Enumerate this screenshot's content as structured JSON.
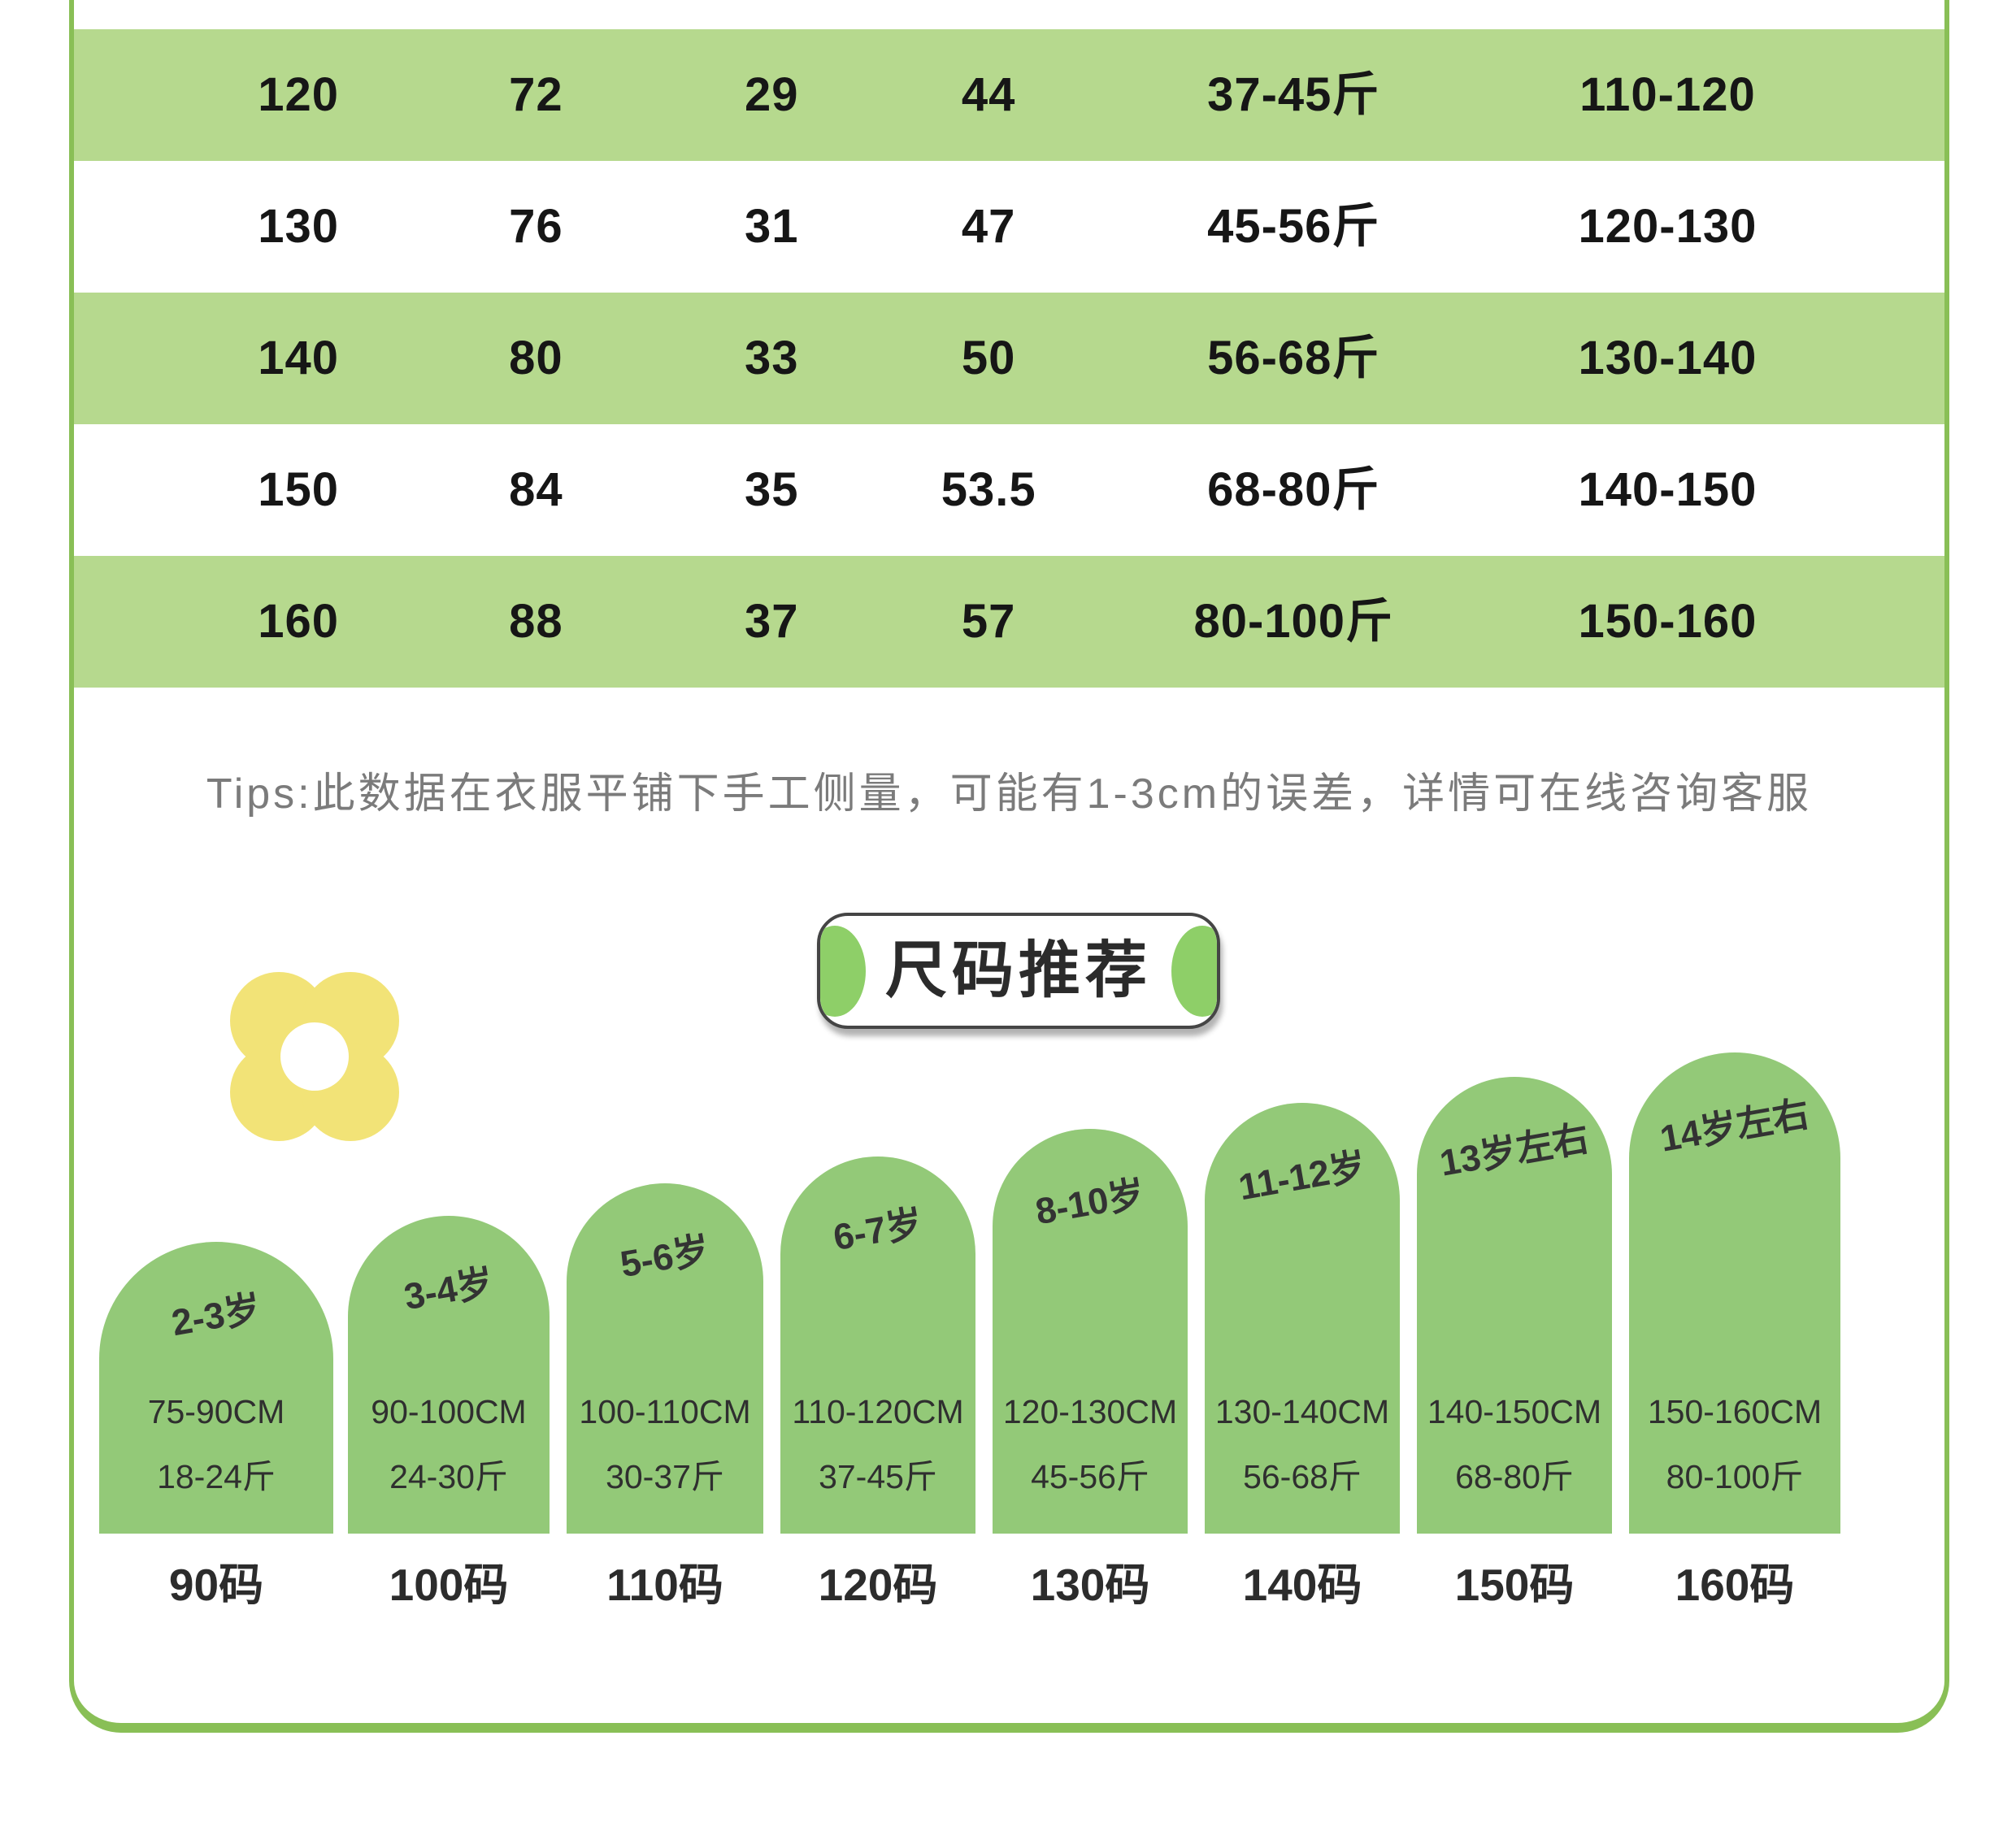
{
  "size_table": {
    "rows": [
      {
        "values": [
          "120",
          "72",
          "29",
          "44",
          "37-45斤",
          "110-120"
        ]
      },
      {
        "values": [
          "130",
          "76",
          "31",
          "47",
          "45-56斤",
          "120-130"
        ]
      },
      {
        "values": [
          "140",
          "80",
          "33",
          "50",
          "56-68斤",
          "130-140"
        ]
      },
      {
        "values": [
          "150",
          "84",
          "35",
          "53.5",
          "68-80斤",
          "140-150"
        ]
      },
      {
        "values": [
          "160",
          "88",
          "37",
          "57",
          "80-100斤",
          "150-160"
        ]
      }
    ]
  },
  "tips": "Tips:此数据在衣服平铺下手工侧量，可能有1-3cm的误差，详情可在线咨询客服",
  "size_guide": {
    "title": "尺码推荐",
    "items": [
      {
        "age": "2-3岁",
        "height": "75-90CM",
        "weight": "18-24斤",
        "size": "90码"
      },
      {
        "age": "3-4岁",
        "height": "90-100CM",
        "weight": "24-30斤",
        "size": "100码"
      },
      {
        "age": "5-6岁",
        "height": "100-110CM",
        "weight": "30-37斤",
        "size": "110码"
      },
      {
        "age": "6-7岁",
        "height": "110-120CM",
        "weight": "37-45斤",
        "size": "120码"
      },
      {
        "age": "8-10岁",
        "height": "120-130CM",
        "weight": "45-56斤",
        "size": "130码"
      },
      {
        "age": "11-12岁",
        "height": "130-140CM",
        "weight": "56-68斤",
        "size": "140码"
      },
      {
        "age": "13岁左右",
        "height": "140-150CM",
        "weight": "68-80斤",
        "size": "150码"
      },
      {
        "age": "14岁左右",
        "height": "150-160CM",
        "weight": "80-100斤",
        "size": "160码"
      }
    ]
  },
  "icons": {
    "flower": "flower-icon"
  },
  "colors": {
    "table_band_green": "#b6d98e",
    "arch_green": "#93c978",
    "frame_border_green": "#89bf56",
    "badge_accent_green": "#8ecf68",
    "flower_yellow": "#f2e377",
    "tips_gray": "#7b7b7b",
    "text_dark": "#1c1c1c"
  }
}
